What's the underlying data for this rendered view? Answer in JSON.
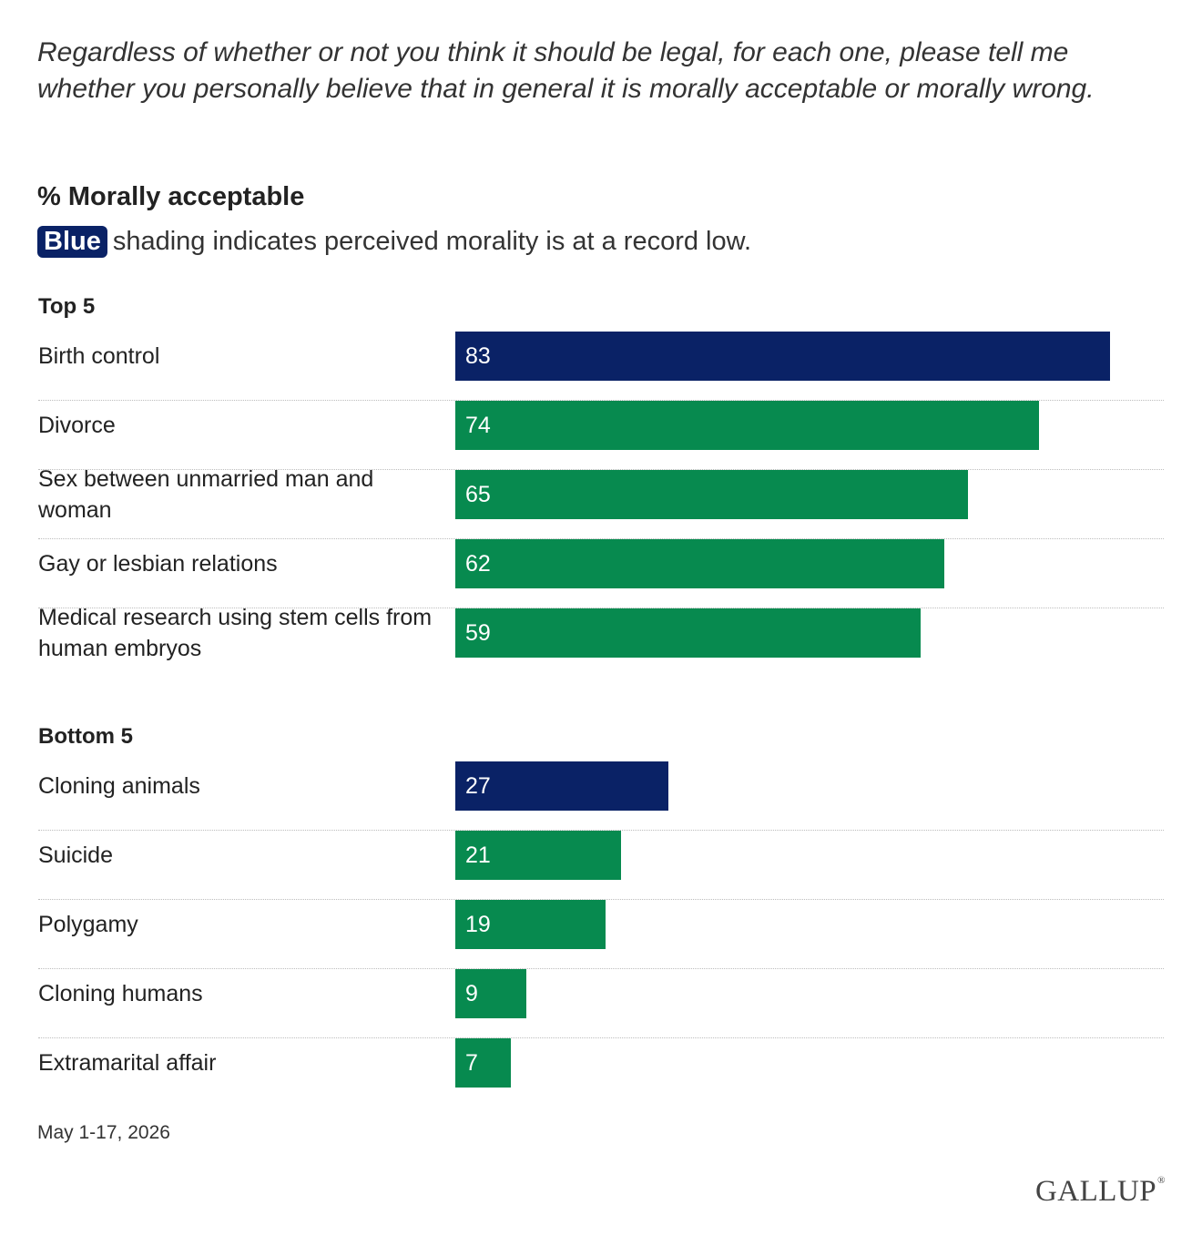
{
  "question": "Regardless of whether or not you think it should be legal, for each one, please tell me whether you personally believe that in general it is morally acceptable or morally wrong.",
  "colors": {
    "record_low": "#0a2266",
    "default": "#078a4f"
  },
  "chart_data": {
    "type": "bar",
    "orientation": "horizontal",
    "title": "% Morally acceptable",
    "subtitle_badge": "Blue",
    "subtitle_text": "shading indicates perceived morality is at a record low.",
    "xlim": [
      0,
      100
    ],
    "groups": [
      {
        "label": "Top 5",
        "rows": [
          {
            "category": "Birth control",
            "value": 83,
            "record_low": true
          },
          {
            "category": "Divorce",
            "value": 74,
            "record_low": false
          },
          {
            "category": "Sex between unmarried man and woman",
            "value": 65,
            "record_low": false
          },
          {
            "category": "Gay or lesbian relations",
            "value": 62,
            "record_low": false
          },
          {
            "category": "Medical research using stem cells from human embryos",
            "value": 59,
            "record_low": false
          }
        ]
      },
      {
        "label": "Bottom 5",
        "rows": [
          {
            "category": "Cloning animals",
            "value": 27,
            "record_low": true
          },
          {
            "category": "Suicide",
            "value": 21,
            "record_low": false
          },
          {
            "category": "Polygamy",
            "value": 19,
            "record_low": false
          },
          {
            "category": "Cloning humans",
            "value": 9,
            "record_low": false
          },
          {
            "category": "Extramarital affair",
            "value": 7,
            "record_low": false
          }
        ]
      }
    ]
  },
  "footnote": "May 1-17, 2026",
  "logo_text": "GALLUP",
  "logo_mark": "®"
}
